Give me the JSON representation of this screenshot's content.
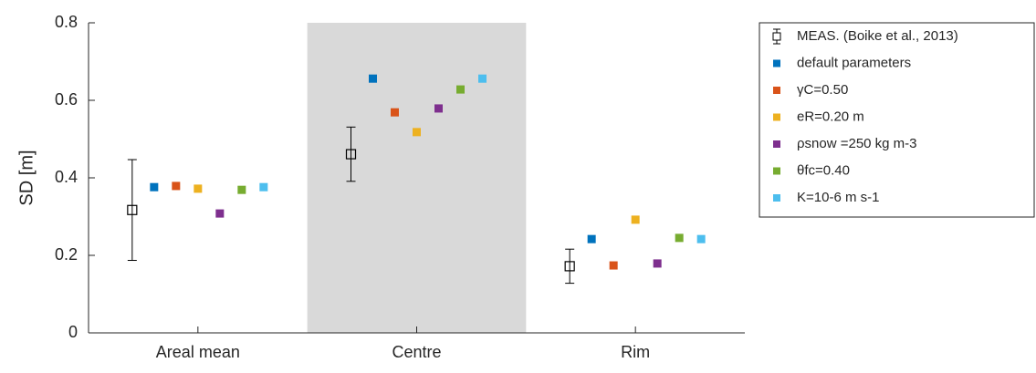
{
  "chart_data": {
    "type": "scatter",
    "ylabel": "SD [m]",
    "categories": [
      "Areal mean",
      "Centre",
      "Rim"
    ],
    "shaded_category": "Centre",
    "shade_color": "#d9d9d9",
    "ylim": [
      0,
      0.8
    ],
    "yticks": [
      0,
      0.2,
      0.4,
      0.6,
      0.8
    ],
    "series": [
      {
        "name": "MEAS. (Boike et al., 2013)",
        "color": "#000000",
        "marker": "open-square",
        "values": [
          0.317,
          0.461,
          0.172
        ],
        "errors": [
          0.13,
          0.07,
          0.044
        ]
      },
      {
        "name": "default parameters",
        "color": "#0072BD",
        "values": [
          0.376,
          0.656,
          0.242
        ]
      },
      {
        "name": "γC=0.50",
        "color": "#D95319",
        "values": [
          0.379,
          0.569,
          0.174
        ]
      },
      {
        "name": "eR=0.20 m",
        "color": "#EDB120",
        "values": [
          0.372,
          0.518,
          0.292
        ]
      },
      {
        "name": "ρsnow =250 kg m-3",
        "color": "#7E2F8E",
        "values": [
          0.308,
          0.579,
          0.179
        ]
      },
      {
        "name": "θfc=0.40",
        "color": "#77AC30",
        "values": [
          0.369,
          0.628,
          0.245
        ]
      },
      {
        "name": "K=10-6 m s-1",
        "color": "#4DBEEE",
        "values": [
          0.376,
          0.656,
          0.242
        ]
      }
    ],
    "legend": "outside-top-right"
  }
}
